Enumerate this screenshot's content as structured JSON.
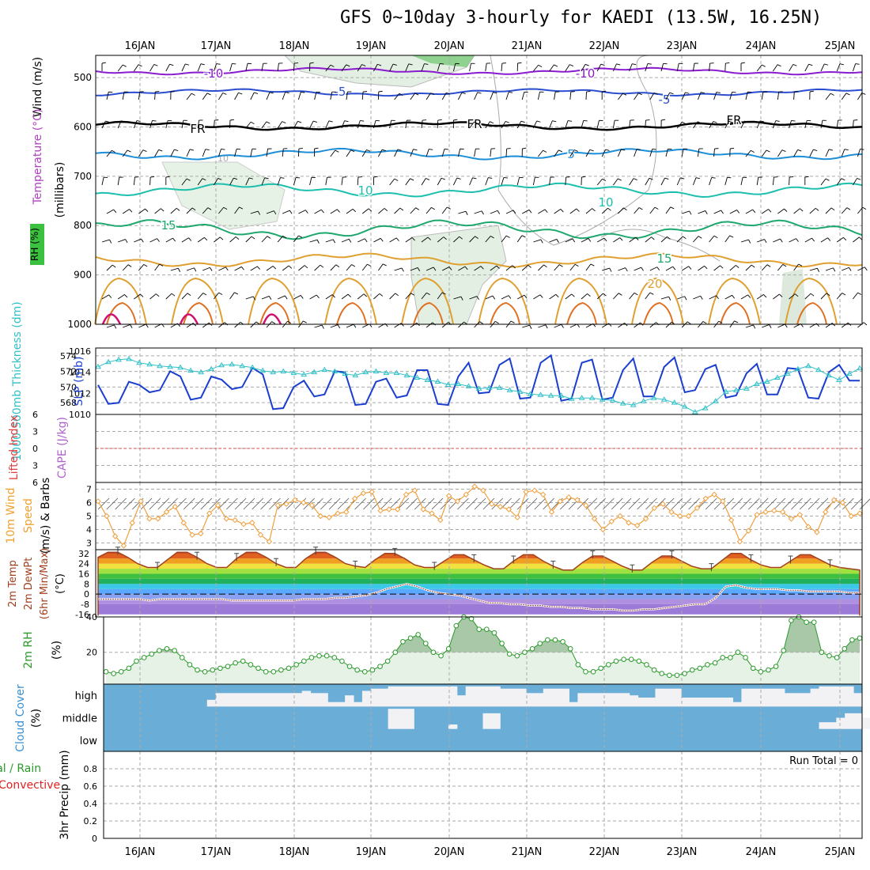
{
  "title": "GFS 0~10day 3-hourly for KAEDI (13.5W, 16.25N)",
  "date_labels": [
    "16JAN",
    "17JAN",
    "18JAN",
    "19JAN",
    "20JAN",
    "21JAN",
    "22JAN",
    "23JAN",
    "24JAN",
    "25JAN"
  ],
  "colors": {
    "temp_m10": "#8a1bcf",
    "temp_m5": "#2a4ed0",
    "temp_0": "#000000",
    "temp_5": "#1c8fd8",
    "temp_10": "#1cbfae",
    "temp_15": "#1ea86e",
    "temp_20": "#e0a030",
    "temp_25": "#e07020",
    "temp_30": "#d01070",
    "rh_fill": "#e6f2e6",
    "rh_dark": "#6cc46c",
    "slp": "#1a3fcf",
    "thickness": "#30c0c8",
    "wind": "#f0a040",
    "temp2m": "#a04020",
    "dew": "#a06060",
    "rh2m": "#2a9a2a",
    "cloud": "#6aaed8",
    "cloud_clear": "#f2f2f5"
  },
  "chart_data": [
    {
      "type": "contour",
      "panel": "upper-air",
      "ylabel": "(millibars)",
      "side_labels": [
        "Wind (m/s)",
        "Temperature (°C)",
        "RH (%)"
      ],
      "y_axis": {
        "ticks": [
          500,
          600,
          700,
          800,
          900,
          1000
        ],
        "range": [
          455,
          1000
        ],
        "reverse": true
      },
      "isotherm_labels": [
        {
          "label": "-10",
          "level": 487
        },
        {
          "label": "-5",
          "level": 530
        },
        {
          "label": "FR",
          "level": 598
        },
        {
          "label": "5",
          "level": 655
        },
        {
          "label": "10",
          "level": 725
        },
        {
          "label": "15",
          "level": 808
        },
        {
          "label": "20",
          "level": 878
        }
      ],
      "rh_label": "10"
    },
    {
      "type": "line",
      "panel": "slp-thickness",
      "ylabel_left": "1000-500mb Thickness (dm)",
      "ylabel_right": "SLP (mb)",
      "left_axis": {
        "ticks": [
          568,
          570,
          572,
          574
        ],
        "range": [
          566.5,
          575
        ]
      },
      "right_axis": {
        "ticks": [
          1010,
          1012,
          1014,
          1016
        ],
        "range": [
          1010,
          1016.3
        ]
      },
      "series": [
        {
          "name": "SLP (mb)",
          "values": [
            1012.8,
            1011.0,
            1011.1,
            1013.1,
            1012.8,
            1012.1,
            1012.3,
            1014.1,
            1013.6,
            1011.4,
            1011.6,
            1013.6,
            1013.3,
            1012.4,
            1012.6,
            1014.4,
            1013.8,
            1010.5,
            1010.6,
            1012.6,
            1013.2,
            1011.7,
            1011.9,
            1014.1,
            1014.0,
            1010.9,
            1011.0,
            1013.1,
            1013.4,
            1011.6,
            1011.8,
            1014.2,
            1014.2,
            1011.0,
            1010.9,
            1013.6,
            1014.9,
            1012.0,
            1012.1,
            1014.7,
            1015.3,
            1011.5,
            1011.6,
            1014.9,
            1015.6,
            1011.3,
            1011.5,
            1014.9,
            1015.2,
            1011.4,
            1011.6,
            1014.2,
            1015.3,
            1011.7,
            1011.7,
            1014.5,
            1015.4,
            1012.1,
            1012.3,
            1014.3,
            1014.7,
            1011.6,
            1011.8,
            1013.9,
            1014.8,
            1011.9,
            1011.9,
            1014.4,
            1014.3,
            1011.6,
            1011.5,
            1014.0,
            1014.7,
            1013.2,
            1013.2
          ]
        },
        {
          "name": "1000-500mb Thickness (dm)",
          "values": [
            572.6,
            573.2,
            573.5,
            573.6,
            573.1,
            572.9,
            572.7,
            572.6,
            572.5,
            572.1,
            571.9,
            572.3,
            572.8,
            572.9,
            572.7,
            572.5,
            572.1,
            571.9,
            572.0,
            571.8,
            571.6,
            571.9,
            572.2,
            572.0,
            571.7,
            571.5,
            571.9,
            572.0,
            571.8,
            571.8,
            571.5,
            571.2,
            570.9,
            570.7,
            570.3,
            570.4,
            570.1,
            569.8,
            569.9,
            569.9,
            569.6,
            569.4,
            569.1,
            569.0,
            568.9,
            568.9,
            568.5,
            568.6,
            568.6,
            568.4,
            568.3,
            567.9,
            567.7,
            568.2,
            568.6,
            568.4,
            568.0,
            567.5,
            566.8,
            567.3,
            568.2,
            569.4,
            569.6,
            569.8,
            570.4,
            570.7,
            571.2,
            571.7,
            572.3,
            572.7,
            572.2,
            571.5,
            570.9,
            571.7,
            572.4
          ]
        }
      ]
    },
    {
      "type": "line",
      "panel": "stability",
      "ylabel_left": "Lifted Index",
      "ylabel_right": "CAPE (J/kg)",
      "y_axis": {
        "tick_labels": [
          "6",
          "3",
          "0",
          "3",
          "6"
        ],
        "range": [
          -6,
          6
        ]
      },
      "series": []
    },
    {
      "type": "line",
      "panel": "10m-wind",
      "ylabel": "10m Wind Speed (m/s) & Barbs",
      "y_axis": {
        "ticks": [
          3,
          4,
          5,
          6,
          7
        ],
        "range": [
          2.5,
          7.5
        ]
      },
      "series": [
        {
          "name": "10m Wind Speed (m/s)",
          "values": [
            6.1,
            5.0,
            3.5,
            2.8,
            4.5,
            6.1,
            4.8,
            4.8,
            5.3,
            5.7,
            4.5,
            3.6,
            3.7,
            5.2,
            5.8,
            4.8,
            4.7,
            4.4,
            4.5,
            3.6,
            3.1,
            5.8,
            5.9,
            6.2,
            6.0,
            5.8,
            5.0,
            4.9,
            5.2,
            5.3,
            6.3,
            6.7,
            6.8,
            5.4,
            5.5,
            5.5,
            6.6,
            6.9,
            5.5,
            5.2,
            4.7,
            6.5,
            6.1,
            6.6,
            7.2,
            6.9,
            5.9,
            5.7,
            5.5,
            4.9,
            6.8,
            6.9,
            6.6,
            5.3,
            6.1,
            6.4,
            6.2,
            5.8,
            4.8,
            4.0,
            4.6,
            5.0,
            4.5,
            4.3,
            4.8,
            5.6,
            5.9,
            5.3,
            5.0,
            5.0,
            5.6,
            6.3,
            6.6,
            6.1,
            4.7,
            3.1,
            3.9,
            5.1,
            5.3,
            5.4,
            5.3,
            4.8,
            5.1,
            4.2,
            3.8,
            5.3,
            6.2,
            6.0,
            5.0,
            5.2
          ]
        }
      ]
    },
    {
      "type": "area",
      "panel": "2m-temp",
      "ylabel": "2m Temp 2m DewPt (6hr Min/Max) (°C)",
      "y_axis": {
        "tick_labels": [
          "32",
          "24",
          "16",
          "8",
          "0",
          "-8",
          "-16"
        ],
        "range": [
          -18,
          35
        ]
      },
      "series": [
        {
          "name": "2m Temp",
          "values": [
            29,
            33,
            33,
            29,
            24,
            21,
            21,
            27,
            33,
            33,
            29,
            24,
            21,
            21,
            28,
            33,
            33,
            29,
            24,
            21,
            21,
            28,
            33,
            33,
            29,
            24,
            22,
            21,
            27,
            32,
            32,
            28,
            23,
            21,
            21,
            26,
            31,
            31,
            27,
            23,
            20,
            20,
            26,
            31,
            31,
            26,
            22,
            19,
            19,
            25,
            30,
            30,
            26,
            22,
            19,
            19,
            25,
            30,
            30,
            26,
            22,
            20,
            20,
            26,
            32,
            32,
            27,
            23,
            21,
            21,
            26,
            31,
            31,
            27,
            23,
            21,
            20,
            19
          ]
        },
        {
          "name": "2m DewPt",
          "values": [
            -4,
            -4,
            -4,
            -4,
            -4,
            -5,
            -4,
            -4,
            -4,
            -4,
            -4,
            -4,
            -4,
            -5,
            -5,
            -5,
            -5,
            -5,
            -5,
            -5,
            -4,
            -4,
            -4,
            -3,
            -3,
            -2,
            -1,
            1,
            4,
            6,
            8,
            6,
            3,
            1,
            0,
            -1,
            -3,
            -5,
            -7,
            -7,
            -8,
            -8,
            -9,
            -9,
            -10,
            -10,
            -11,
            -11,
            -12,
            -12,
            -12,
            -13,
            -13,
            -12,
            -12,
            -11,
            -10,
            -9,
            -8,
            -8,
            -3,
            6,
            7,
            5,
            4,
            4,
            4,
            3,
            3,
            2,
            2,
            2,
            2,
            1,
            1
          ]
        }
      ]
    },
    {
      "type": "area",
      "panel": "2m-rh",
      "ylabel": "2m RH (%)",
      "y_axis": {
        "ticks": [
          20,
          40
        ],
        "range": [
          2,
          40
        ]
      },
      "series": [
        {
          "name": "2m RH (%)",
          "values": [
            9,
            8,
            9,
            11,
            15,
            17,
            19,
            21,
            22,
            21,
            17,
            13,
            10,
            9,
            10,
            11,
            12,
            14,
            15,
            13,
            11,
            9,
            9,
            10,
            11,
            13,
            15,
            17,
            18,
            18,
            17,
            15,
            12,
            10,
            9,
            10,
            12,
            15,
            20,
            26,
            28,
            30,
            25,
            20,
            18,
            22,
            35,
            40,
            39,
            33,
            33,
            31,
            25,
            19,
            18,
            20,
            22,
            25,
            27,
            27,
            26,
            22,
            13,
            9,
            9,
            11,
            13,
            15,
            16,
            16,
            15,
            13,
            10,
            8,
            7,
            7,
            8,
            10,
            11,
            13,
            14,
            17,
            17,
            20,
            17,
            11,
            9,
            10,
            12,
            21,
            38,
            40,
            37,
            37,
            20,
            18,
            17,
            22,
            27,
            28
          ]
        }
      ]
    },
    {
      "type": "heatmap",
      "panel": "cloud-cover",
      "ylabel": "Cloud Cover (%)",
      "y_labels": [
        "high",
        "middle",
        "low"
      ],
      "high_clear": [
        0,
        0,
        0,
        0,
        0,
        0,
        0,
        0,
        0,
        0,
        0,
        0,
        0.3,
        0.6,
        0.6,
        0.6,
        0.6,
        0.6,
        0.6,
        0.6,
        0.6,
        0.6,
        0.6,
        0.7,
        0.6,
        0.6,
        0.2,
        0.2,
        0.5,
        0.2,
        0.7,
        0.8,
        0.8,
        0.9,
        0.9,
        0.9,
        0.9,
        0.9,
        0.9,
        0.9,
        0.9,
        0.5,
        0.9,
        0.9,
        0.9,
        0.9,
        0.8,
        0.8,
        0.8,
        0.6,
        0.6,
        0.8,
        0.8,
        0.8,
        0.2,
        0.6,
        0.6,
        0.6,
        0.6,
        0.6,
        0.6,
        0.5,
        0.4,
        0.4,
        0.8,
        0.8,
        0.8,
        0.4,
        0.4,
        0.4,
        0.4,
        0.4,
        0.4,
        0.2,
        0.8,
        0.8,
        0.8,
        0.8,
        0.8,
        0.6,
        0.6,
        0.6,
        0.8,
        0.9,
        0.9,
        0.9,
        0.9,
        0.6
      ],
      "middle_clear": [
        0,
        0,
        0,
        0,
        0,
        0,
        0,
        0,
        0,
        0,
        0,
        0,
        0,
        0,
        0,
        0,
        0,
        0,
        0,
        0,
        0,
        0,
        0,
        0,
        0,
        0,
        0,
        0,
        0,
        0,
        0,
        0,
        0,
        0.9,
        0.9,
        0.9,
        0,
        0,
        0,
        0,
        0.2,
        0,
        0,
        0,
        0.7,
        0.7,
        0,
        0,
        0,
        0,
        0,
        0,
        0,
        0,
        0,
        0,
        0,
        0,
        0,
        0,
        0,
        0,
        0,
        0,
        0,
        0,
        0,
        0,
        0,
        0,
        0,
        0,
        0,
        0,
        0,
        0,
        0,
        0,
        0,
        0,
        0,
        0,
        0,
        0.3,
        0.3,
        0.5,
        0.7,
        0.7,
        0.5
      ]
    },
    {
      "type": "bar",
      "panel": "precip",
      "ylabel": "3hr Precip (mm)",
      "legend": [
        "Total / Rain",
        "Convective"
      ],
      "annotation": "Run Total = 0",
      "y_axis": {
        "ticks": [
          0,
          0.2,
          0.4,
          0.6,
          0.8
        ],
        "range": [
          0,
          1
        ]
      },
      "values": []
    }
  ]
}
